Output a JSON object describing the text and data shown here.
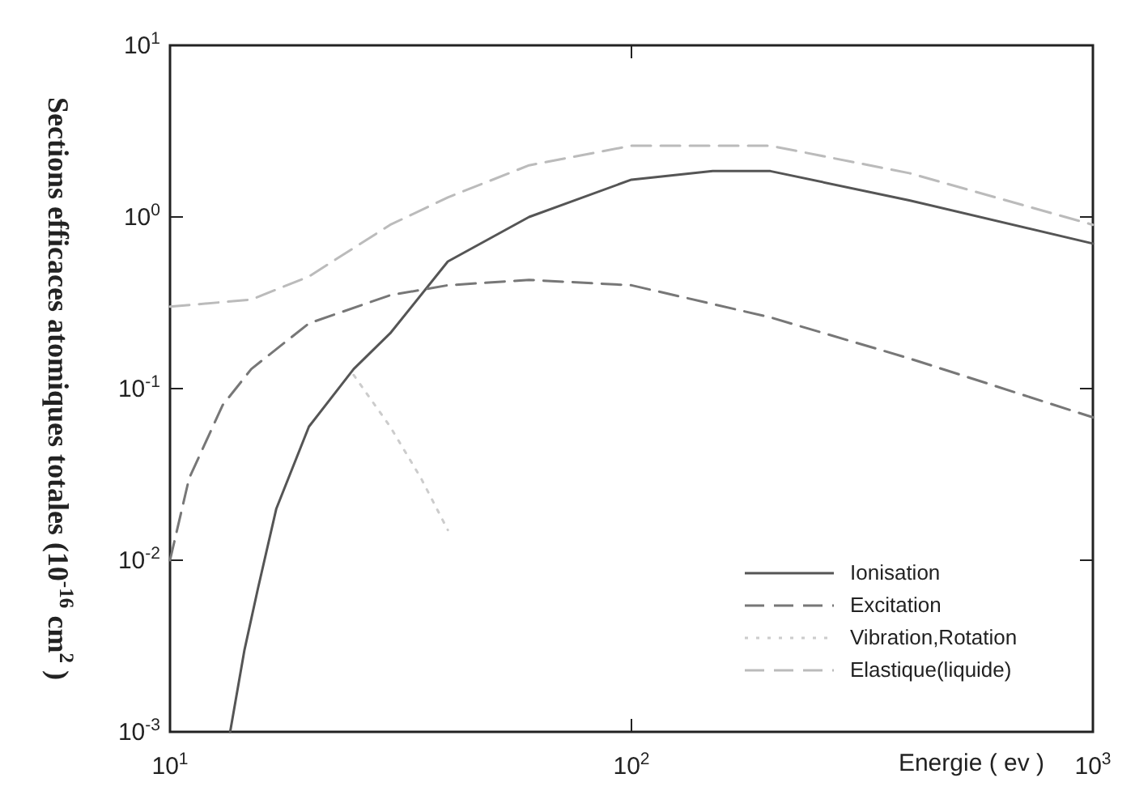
{
  "chart_data": {
    "type": "line",
    "xlabel": "Energie ( ev )",
    "ylabel": "Sections efficaces atomiques totales (10$^{-16}$ cm$^{2}$ )",
    "log": "xy",
    "xlim": [
      10,
      1000
    ],
    "ylim": [
      0.001,
      10
    ],
    "xticks": [
      {
        "value": 10,
        "label": "10$^{1}$"
      },
      {
        "value": 100,
        "label": "10$^{2}$"
      },
      {
        "value": 1000,
        "label": "10$^{3}$"
      }
    ],
    "yticks": [
      {
        "value": 0.001,
        "label": "10$^{-3}$"
      },
      {
        "value": 0.01,
        "label": "10$^{-2}$"
      },
      {
        "value": 0.1,
        "label": "10$^{-1}$"
      },
      {
        "value": 1,
        "label": "10$^{0}$"
      },
      {
        "value": 10,
        "label": "10$^{1}$"
      }
    ],
    "grid": false,
    "legend": "bottom right",
    "marker": "none",
    "series": [
      {
        "name": "Ionisation",
        "color": "#555555",
        "line_style": "solid",
        "x": [
          13.5,
          14.5,
          15.5,
          17,
          20,
          25,
          30,
          40,
          60,
          100,
          150,
          200,
          400,
          1000
        ],
        "values": [
          0.001,
          0.003,
          0.0068,
          0.02,
          0.06,
          0.13,
          0.21,
          0.55,
          1.0,
          1.65,
          1.85,
          1.85,
          1.25,
          0.7
        ]
      },
      {
        "name": "Excitation",
        "color": "#777777",
        "line_style": "dashed",
        "x": [
          10,
          11,
          13,
          15,
          20,
          30,
          40,
          60,
          100,
          200,
          400,
          1000
        ],
        "values": [
          0.01,
          0.03,
          0.08,
          0.13,
          0.24,
          0.35,
          0.4,
          0.43,
          0.4,
          0.26,
          0.15,
          0.068
        ]
      },
      {
        "name": "Vibration,Rotation",
        "color": "#cccccc",
        "line_style": "dotted",
        "x": [
          25,
          30,
          35,
          40
        ],
        "values": [
          0.12,
          0.06,
          0.03,
          0.015
        ]
      },
      {
        "name": "Elastique(liquide)",
        "color": "#bbbbbb",
        "line_style": "dashed",
        "x": [
          10,
          15,
          20,
          30,
          40,
          60,
          100,
          200,
          400,
          1000
        ],
        "values": [
          0.3,
          0.33,
          0.45,
          0.9,
          1.3,
          2.0,
          2.6,
          2.6,
          1.8,
          0.9
        ]
      }
    ]
  }
}
